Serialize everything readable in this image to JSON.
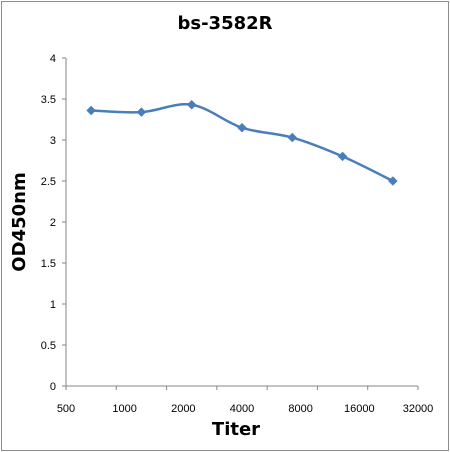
{
  "chart_data": {
    "type": "line",
    "title": "bs-3582R",
    "xlabel": "Titer",
    "ylabel": "OD450nm",
    "categories": [
      "500",
      "1000",
      "2000",
      "4000",
      "8000",
      "16000",
      "32000"
    ],
    "series": [
      {
        "values": [
          3.36,
          3.34,
          3.43,
          3.15,
          3.03,
          2.8,
          2.5
        ]
      }
    ],
    "yticks": [
      "0",
      "0.5",
      "1",
      "1.5",
      "2",
      "2.5",
      "3",
      "3.5",
      "4"
    ],
    "ylim": [
      0,
      4
    ],
    "grid": false,
    "legend": "none",
    "colors": {
      "line": "#4a7ebb",
      "axis": "#868686"
    }
  }
}
